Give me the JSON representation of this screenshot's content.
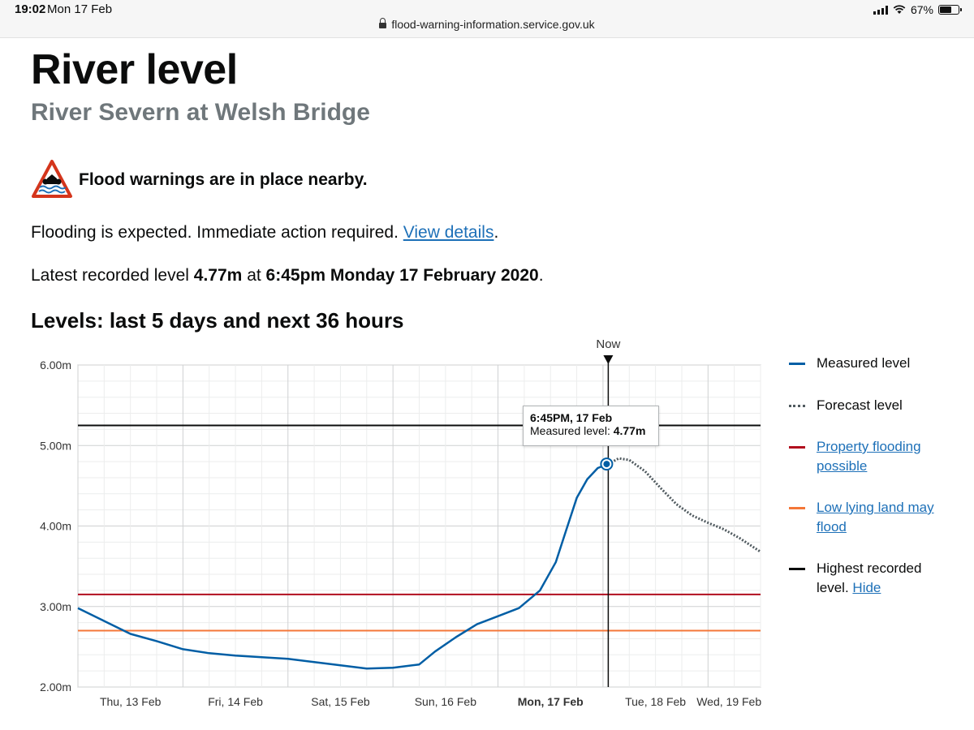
{
  "status_bar": {
    "time": "19:02",
    "date": "Mon 17 Feb",
    "url": "flood-warning-information.service.gov.uk",
    "battery": "67%",
    "battery_fraction": 0.67
  },
  "page": {
    "title": "River level",
    "subtitle": "River Severn at Welsh Bridge"
  },
  "warning": {
    "text": "Flood warnings are in place nearby.",
    "icon": "flood-warning-icon",
    "color": "#d4351c"
  },
  "info": {
    "expected_text": "Flooding is expected. Immediate action required.",
    "view_details": "View details",
    "period": ".",
    "latest_prefix": "Latest recorded level",
    "latest_value": "4.77m",
    "latest_at": "at",
    "latest_time": "6:45pm Monday 17 February 2020",
    "latest_suffix": "."
  },
  "chart_heading": "Levels: last 5 days and next 36 hours",
  "now_label": "Now",
  "tooltip": {
    "title": "6:45PM, 17 Feb",
    "label": "Measured level:",
    "value": "4.77m"
  },
  "legend": [
    {
      "label": "Measured level",
      "color": "#005ea5",
      "style": "solid",
      "link": false
    },
    {
      "label": "Forecast level",
      "color": "#505a5f",
      "style": "dotted",
      "link": false
    },
    {
      "label": "Property flooding possible",
      "color": "#b10e1e",
      "style": "solid",
      "link": true
    },
    {
      "label": "Low lying land may flood",
      "color": "#f47738",
      "style": "solid",
      "link": true
    },
    {
      "label": "Highest recorded level.",
      "link_text": "Hide",
      "color": "#0b0c0c",
      "style": "solid",
      "link": false
    }
  ],
  "chart_data": {
    "type": "line",
    "title": "Levels: last 5 days and next 36 hours",
    "ylim": [
      2,
      6
    ],
    "yticks": [
      "2.00m",
      "3.00m",
      "4.00m",
      "5.00m",
      "6.00m"
    ],
    "yunit": "m",
    "xlim": [
      0,
      6.5
    ],
    "xticks": [
      {
        "x": 0.5,
        "label": "Thu, 13 Feb",
        "bold": false
      },
      {
        "x": 1.5,
        "label": "Fri, 14 Feb",
        "bold": false
      },
      {
        "x": 2.5,
        "label": "Sat, 15 Feb",
        "bold": false
      },
      {
        "x": 3.5,
        "label": "Sun, 16 Feb",
        "bold": false
      },
      {
        "x": 4.5,
        "label": "Mon, 17 Feb",
        "bold": true
      },
      {
        "x": 5.5,
        "label": "Tue, 18 Feb",
        "bold": false
      },
      {
        "x": 6.2,
        "label": "Wed, 19 Feb",
        "bold": false
      }
    ],
    "now_x": 5.05,
    "thresholds": [
      {
        "name": "Highest recorded level",
        "value": 5.25,
        "color": "#0b0c0c"
      },
      {
        "name": "Property flooding possible",
        "value": 3.15,
        "color": "#b10e1e"
      },
      {
        "name": "Low lying land may flood",
        "value": 2.7,
        "color": "#f47738"
      }
    ],
    "series": [
      {
        "name": "Measured level",
        "color": "#005ea5",
        "x": [
          0,
          0.25,
          0.5,
          0.75,
          1.0,
          1.25,
          1.5,
          1.75,
          2.0,
          2.25,
          2.5,
          2.75,
          3.0,
          3.25,
          3.4,
          3.6,
          3.8,
          4.0,
          4.2,
          4.4,
          4.55,
          4.65,
          4.75,
          4.85,
          4.95,
          5.05
        ],
        "y": [
          2.98,
          2.82,
          2.66,
          2.57,
          2.47,
          2.42,
          2.39,
          2.37,
          2.35,
          2.31,
          2.27,
          2.23,
          2.24,
          2.28,
          2.44,
          2.62,
          2.78,
          2.88,
          2.98,
          3.2,
          3.55,
          3.95,
          4.35,
          4.58,
          4.72,
          4.77
        ]
      },
      {
        "name": "Forecast level",
        "color": "#505a5f",
        "x": [
          5.05,
          5.15,
          5.25,
          5.4,
          5.55,
          5.7,
          5.85,
          6.0,
          6.15,
          6.3,
          6.5
        ],
        "y": [
          4.77,
          4.84,
          4.82,
          4.68,
          4.47,
          4.27,
          4.13,
          4.04,
          3.96,
          3.85,
          3.68
        ]
      }
    ],
    "grid": true,
    "legend_position": "right"
  }
}
